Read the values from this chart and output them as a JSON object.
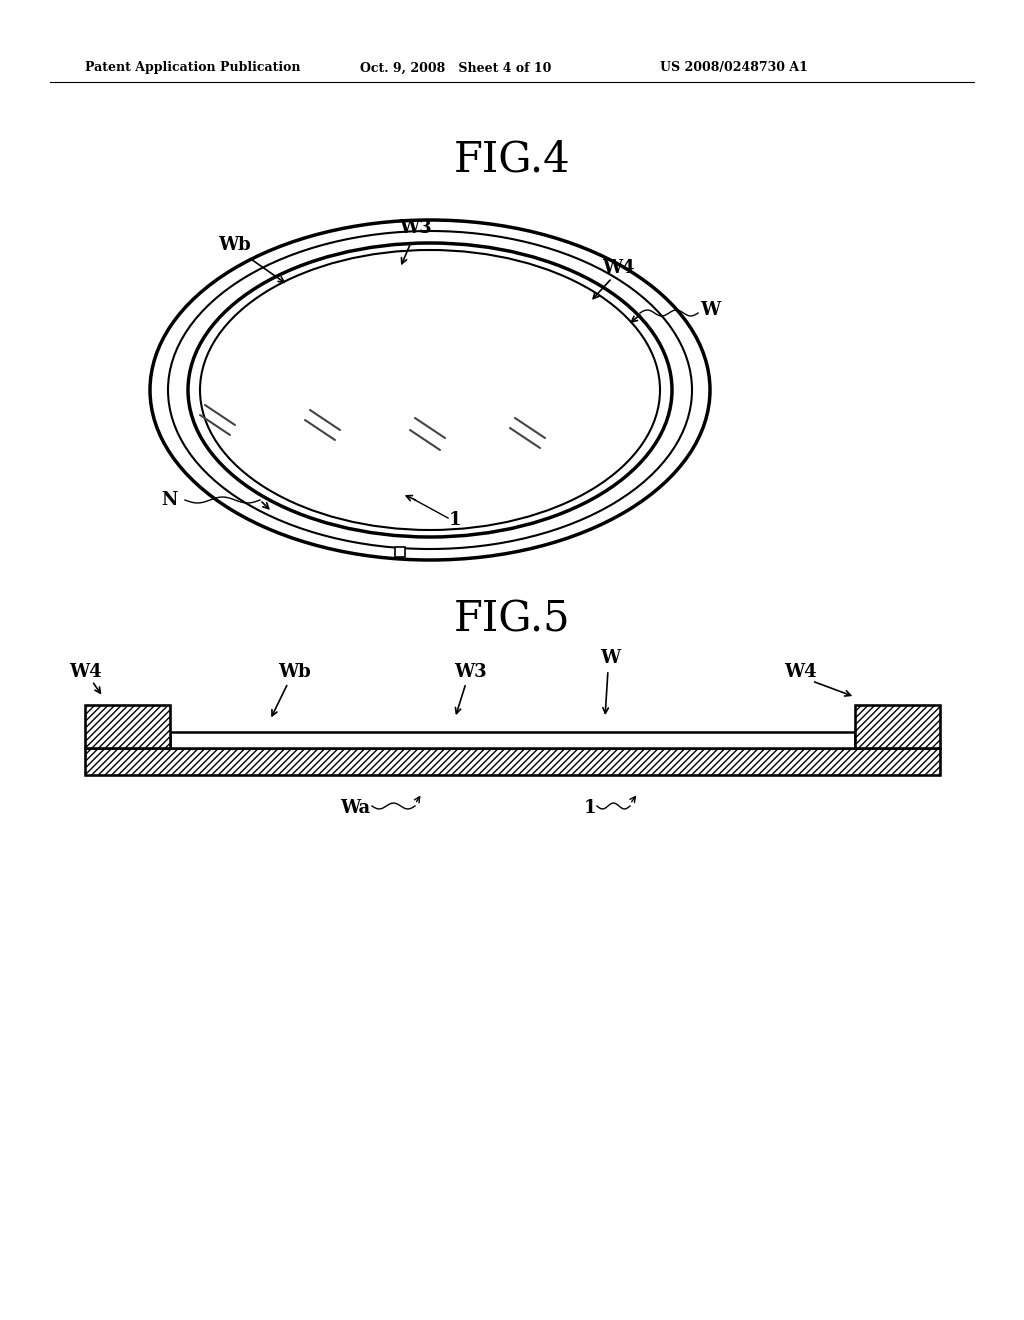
{
  "bg_color": "#ffffff",
  "header_left": "Patent Application Publication",
  "header_mid": "Oct. 9, 2008   Sheet 4 of 10",
  "header_right": "US 2008/0248730 A1",
  "fig4_title": "FIG.4",
  "fig5_title": "FIG.5",
  "page_width": 10.24,
  "page_height": 13.2,
  "dpi": 100,
  "label_fontsize": 13,
  "title_fontsize": 30,
  "header_fontsize": 9
}
